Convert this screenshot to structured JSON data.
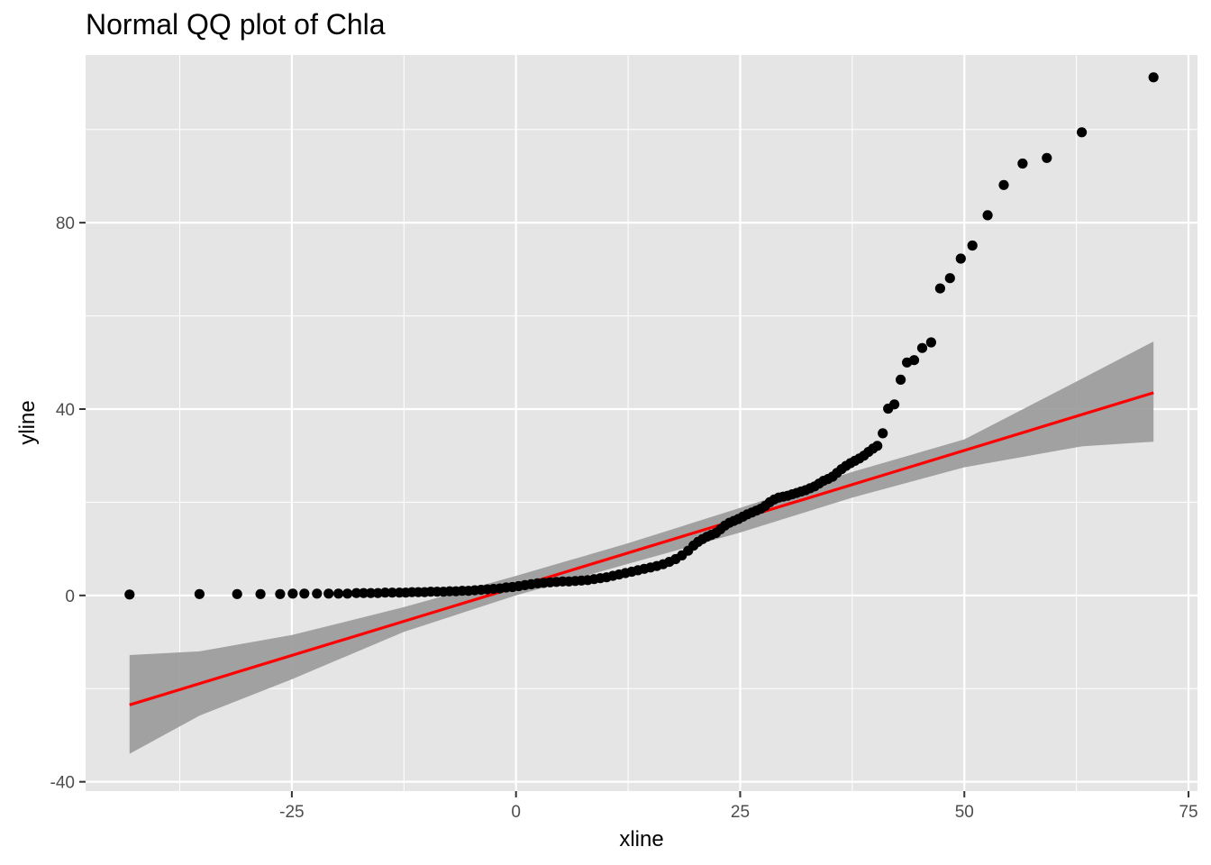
{
  "chart_data": {
    "type": "scatter",
    "title": "Normal QQ plot of Chla",
    "xlabel": "xline",
    "ylabel": "yline",
    "xlim": [
      -48,
      76
    ],
    "ylim": [
      -42,
      116
    ],
    "x_ticks": [
      -25,
      0,
      25,
      50,
      75
    ],
    "y_ticks": [
      -40,
      0,
      40,
      80
    ],
    "x_tick_labels": [
      "-25",
      "0",
      "25",
      "50",
      "75"
    ],
    "y_tick_labels": [
      "-40",
      "0",
      "40",
      "80"
    ],
    "grid": true,
    "colors": {
      "panel_background": "#e5e5e5",
      "grid": "#ffffff",
      "points": "#000000",
      "fit_line": "#ff0000",
      "confidence_band": "#999999"
    },
    "series": [
      {
        "type": "points",
        "x": [
          -43.1,
          -35.3,
          -31.1,
          -28.5,
          -26.3,
          -24.9,
          -23.6,
          -22.2,
          -20.9,
          -19.8,
          -18.8,
          -17.8,
          -17.0,
          -16.2,
          -15.4,
          -14.6,
          -13.8,
          -13.0,
          -12.3,
          -11.6,
          -10.9,
          -10.2,
          -9.5,
          -8.8,
          -8.1,
          -7.4,
          -6.7,
          -6.0,
          -5.3,
          -4.6,
          -3.9,
          -3.2,
          -2.5,
          -1.8,
          -1.1,
          -0.4,
          0.3,
          1.0,
          1.7,
          2.4,
          3.1,
          3.8,
          4.5,
          5.2,
          5.9,
          6.6,
          7.3,
          8.0,
          8.7,
          9.4,
          10.1,
          10.8,
          11.5,
          12.2,
          12.9,
          13.6,
          14.3,
          15.0,
          15.7,
          16.4,
          17.1,
          17.8,
          18.5,
          19.2,
          19.8,
          20.3,
          20.8,
          21.3,
          21.8,
          22.3,
          22.8,
          23.3,
          23.8,
          24.3,
          24.8,
          25.3,
          25.8,
          26.3,
          26.8,
          27.3,
          27.8,
          28.3,
          28.8,
          29.3,
          29.8,
          30.3,
          30.8,
          31.3,
          31.8,
          32.3,
          32.8,
          33.3,
          33.8,
          34.3,
          34.8,
          35.3,
          35.8,
          36.3,
          36.8,
          37.3,
          37.8,
          38.3,
          38.8,
          39.3,
          39.8,
          40.3,
          40.9,
          41.5,
          42.2,
          42.9,
          43.6,
          44.4,
          45.3,
          46.3,
          47.3,
          48.4,
          49.6,
          50.9,
          52.6,
          54.4,
          56.5,
          59.2,
          63.1,
          71.1
        ],
        "y": [
          0.2,
          0.3,
          0.3,
          0.3,
          0.3,
          0.4,
          0.4,
          0.4,
          0.4,
          0.4,
          0.4,
          0.5,
          0.5,
          0.5,
          0.5,
          0.6,
          0.6,
          0.6,
          0.6,
          0.7,
          0.7,
          0.7,
          0.8,
          0.8,
          0.8,
          0.9,
          0.9,
          1.0,
          1.0,
          1.1,
          1.2,
          1.3,
          1.4,
          1.5,
          1.7,
          1.8,
          2.0,
          2.2,
          2.4,
          2.6,
          2.7,
          2.8,
          2.9,
          3.0,
          3.0,
          3.1,
          3.2,
          3.3,
          3.5,
          3.7,
          3.9,
          4.2,
          4.5,
          4.8,
          5.1,
          5.4,
          5.7,
          6.0,
          6.3,
          6.7,
          7.2,
          7.8,
          8.6,
          9.6,
          10.7,
          11.5,
          12.1,
          12.6,
          13.0,
          13.4,
          14.2,
          15.0,
          15.6,
          16.0,
          16.4,
          16.9,
          17.4,
          17.8,
          18.2,
          18.6,
          19.2,
          20.0,
          20.6,
          21.0,
          21.2,
          21.4,
          21.7,
          22.0,
          22.3,
          22.6,
          23.0,
          23.4,
          24.0,
          24.6,
          25.0,
          25.5,
          26.3,
          27.1,
          27.8,
          28.4,
          28.9,
          29.4,
          30.0,
          30.8,
          31.5,
          32.1,
          34.8,
          40.1,
          41.0,
          46.3,
          50.0,
          50.5,
          53.1,
          54.3,
          65.9,
          68.1,
          72.3,
          75.1,
          81.6,
          88.1,
          92.7,
          93.9,
          99.4,
          111.2
        ]
      },
      {
        "type": "fit_line",
        "x": [
          -43.1,
          71.1
        ],
        "y": [
          -23.5,
          43.5
        ]
      },
      {
        "type": "confidence_band",
        "x": [
          -43.1,
          -35.3,
          -25,
          -12.5,
          0,
          12.5,
          25,
          37.5,
          50,
          63.1,
          71.1
        ],
        "upper": [
          -12.8,
          -12.0,
          -8.5,
          -2.5,
          4.2,
          11.2,
          18.8,
          26.5,
          33.5,
          46.5,
          54.5
        ],
        "lower": [
          -34.0,
          -25.8,
          -18.0,
          -7.8,
          0.0,
          6.8,
          13.5,
          21.0,
          27.5,
          32.0,
          33.0
        ]
      }
    ]
  }
}
